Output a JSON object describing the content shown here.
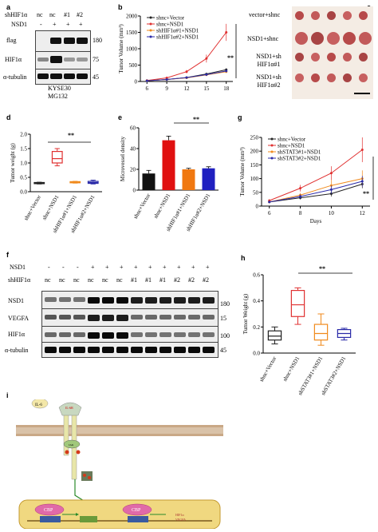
{
  "panels": {
    "a": {
      "letter": "a",
      "row_shHIF1a": "shHIF1α",
      "row_nsd1": "NSD1",
      "lane_top": [
        "nc",
        "nc",
        "#1",
        "#2"
      ],
      "lane_nsd1": [
        "-",
        "+",
        "+",
        "+"
      ],
      "blots": [
        "flag",
        "HIF1α",
        "α-tubulin"
      ],
      "mw": [
        "180",
        "75",
        "45"
      ],
      "caption1": "KYSE30",
      "caption2": "MG132"
    },
    "b": {
      "letter": "b",
      "sig": "**",
      "legend": [
        {
          "name": "shnc+Vector",
          "color": "#222222"
        },
        {
          "name": "shnc+NSD1",
          "color": "#e03030"
        },
        {
          "name": "shHIF1α#1+NSD1",
          "color": "#f08a1c"
        },
        {
          "name": "shHIF1α#2+NSD1",
          "color": "#2a2aa8"
        }
      ]
    },
    "c": {
      "letter": "c",
      "rows": [
        "vector+shnc",
        "NSD1+shnc",
        "NSD1+sh\nHIF1α#1",
        "NSD1+sh\nHIF1α#2"
      ]
    },
    "d": {
      "letter": "d",
      "sig": "**",
      "xcats": [
        "shnc+Vector",
        "shnc+NSD1",
        "shHIF1α#1+NSD1",
        "shHIF1α#2+NSD1"
      ]
    },
    "e": {
      "letter": "e",
      "sig": "**",
      "xcats": [
        "shnc+Vector",
        "shnc+NSD1",
        "shHIF1α#1+NSD1",
        "shHIF1α#2+NSD1"
      ]
    },
    "f": {
      "letter": "f",
      "row_nsd1": "NSD1",
      "row_sh": "shHIF1α",
      "nsd1_signs": [
        "-",
        "-",
        "-",
        "+",
        "+",
        "+",
        "+",
        "+",
        "+",
        "+",
        "+",
        "+"
      ],
      "sh_labels": [
        "nc",
        "nc",
        "nc",
        "nc",
        "nc",
        "nc",
        "#1",
        "#1",
        "#1",
        "#2",
        "#2",
        "#2"
      ],
      "blots": [
        "NSD1",
        "VEGFA",
        "HIF1α",
        "α-tubulin"
      ],
      "mw": [
        "180",
        "15",
        "100",
        "45"
      ]
    },
    "g": {
      "letter": "g",
      "sig": "**",
      "legend": [
        {
          "name": "shnc+Vector",
          "color": "#222222"
        },
        {
          "name": "shnc+NSD1",
          "color": "#e03030"
        },
        {
          "name": "shSTAT3#1+NSD1",
          "color": "#f08a1c"
        },
        {
          "name": "shSTAT3#2+NSD1",
          "color": "#2a2aa8"
        }
      ]
    },
    "h": {
      "letter": "h",
      "sig": "**",
      "xcats": [
        "shnc+Vector",
        "shnc+NSD1",
        "shSTAT3#1+NSD1",
        "shSTAT3#2+NSD1"
      ]
    },
    "i": {
      "letter": "i",
      "ligand": "IL-6",
      "receptor": "IL-6R",
      "gp": "GP130",
      "kinase": "JAK",
      "complex": "NSD1",
      "cbp": [
        "CBP",
        "CBP"
      ],
      "gene": "HIF1α",
      "gene2": "VEGFA"
    }
  },
  "chart_data": [
    {
      "type": "line",
      "panel": "b",
      "x": [
        6,
        9,
        12,
        15,
        18
      ],
      "xlim": [
        5,
        19
      ],
      "ylim": [
        0,
        2000
      ],
      "yticks": [
        0,
        500,
        1000,
        1500,
        2000
      ],
      "ylabel": "Tumor Volume (mm³)",
      "xlabel": "",
      "series": [
        {
          "name": "shnc+Vector",
          "values": [
            20,
            60,
            120,
            230,
            360
          ]
        },
        {
          "name": "shnc+NSD1",
          "values": [
            30,
            110,
            300,
            700,
            1500
          ]
        },
        {
          "name": "shHIF1α#1+NSD1",
          "values": [
            20,
            60,
            110,
            200,
            300
          ]
        },
        {
          "name": "shHIF1α#2+NSD1",
          "values": [
            20,
            60,
            120,
            210,
            320
          ]
        }
      ],
      "errors": [
        [
          5,
          10,
          20,
          30,
          40
        ],
        [
          8,
          20,
          50,
          120,
          260
        ],
        [
          5,
          10,
          20,
          30,
          40
        ],
        [
          5,
          10,
          20,
          30,
          40
        ]
      ]
    },
    {
      "type": "box",
      "panel": "d",
      "ylabel": "Tumor weight (g)",
      "ylim": [
        0.0,
        2.0
      ],
      "yticks": [
        0.0,
        0.5,
        1.0,
        1.5,
        2.0
      ],
      "categories": [
        "shnc+Vector",
        "shnc+NSD1",
        "shHIF1α#1+NSD1",
        "shHIF1α#2+NSD1"
      ],
      "boxes": [
        {
          "min": 0.27,
          "q1": 0.28,
          "median": 0.3,
          "q3": 0.32,
          "max": 0.33,
          "color": "#222222"
        },
        {
          "min": 0.9,
          "q1": 1.0,
          "median": 1.15,
          "q3": 1.4,
          "max": 1.5,
          "color": "#e03030"
        },
        {
          "min": 0.3,
          "q1": 0.31,
          "median": 0.33,
          "q3": 0.35,
          "max": 0.36,
          "color": "#f08a1c"
        },
        {
          "min": 0.27,
          "q1": 0.29,
          "median": 0.32,
          "q3": 0.36,
          "max": 0.4,
          "color": "#2a2aa8"
        }
      ]
    },
    {
      "type": "bar",
      "panel": "e",
      "ylabel": "Microvessel density",
      "ylim": [
        0,
        60
      ],
      "yticks": [
        0,
        20,
        40,
        60
      ],
      "categories": [
        "shnc+Vector",
        "shnc+NSD1",
        "shHIF1α#1+NSD1",
        "shHIF1α#2+NSD1"
      ],
      "values": [
        16,
        48,
        20,
        21
      ],
      "errors": [
        3,
        4,
        1,
        1.5
      ],
      "colors": [
        "#111111",
        "#e01010",
        "#f07810",
        "#2020c0"
      ]
    },
    {
      "type": "line",
      "panel": "g",
      "x": [
        6,
        8,
        10,
        12
      ],
      "xlim": [
        5.5,
        12.5
      ],
      "ylim": [
        0,
        250
      ],
      "yticks": [
        0,
        50,
        100,
        150,
        200,
        250
      ],
      "ylabel": "Tumor Volume (mm³)",
      "xlabel": "Days",
      "series": [
        {
          "name": "shnc+Vector",
          "values": [
            15,
            30,
            45,
            80
          ]
        },
        {
          "name": "shnc+NSD1",
          "values": [
            20,
            65,
            120,
            205
          ]
        },
        {
          "name": "shSTAT3#1+NSD1",
          "values": [
            15,
            40,
            75,
            100
          ]
        },
        {
          "name": "shSTAT3#2+NSD1",
          "values": [
            15,
            35,
            60,
            90
          ]
        }
      ],
      "errors": [
        [
          3,
          6,
          10,
          15
        ],
        [
          5,
          12,
          25,
          45
        ],
        [
          3,
          8,
          20,
          30
        ],
        [
          3,
          8,
          15,
          20
        ]
      ]
    },
    {
      "type": "box",
      "panel": "h",
      "ylabel": "Tumor Weight (g)",
      "ylim": [
        0.0,
        0.6
      ],
      "yticks": [
        0.0,
        0.2,
        0.4,
        0.6
      ],
      "categories": [
        "shnc+Vector",
        "shnc+NSD1",
        "shSTAT3#1+NSD1",
        "shSTAT3#2+NSD1"
      ],
      "boxes": [
        {
          "min": 0.07,
          "q1": 0.1,
          "median": 0.13,
          "q3": 0.17,
          "max": 0.2,
          "color": "#222222"
        },
        {
          "min": 0.22,
          "q1": 0.28,
          "median": 0.37,
          "q3": 0.48,
          "max": 0.5,
          "color": "#e03030"
        },
        {
          "min": 0.06,
          "q1": 0.1,
          "median": 0.15,
          "q3": 0.22,
          "max": 0.3,
          "color": "#f08a1c"
        },
        {
          "min": 0.1,
          "q1": 0.12,
          "median": 0.15,
          "q3": 0.18,
          "max": 0.19,
          "color": "#2a2aa8"
        }
      ]
    }
  ]
}
